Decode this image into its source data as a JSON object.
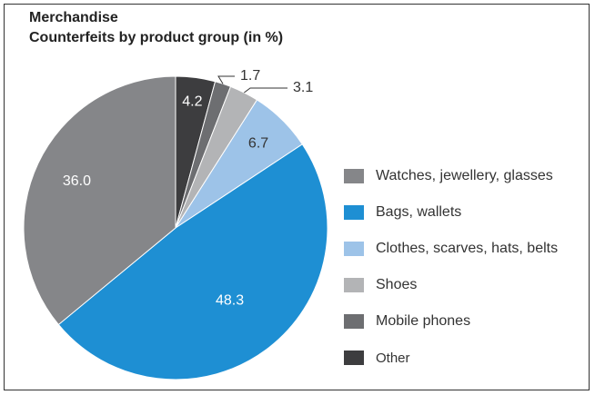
{
  "chart_data": {
    "type": "pie",
    "title": "Merchandise",
    "subtitle": "Counterfeits by product group (in %)",
    "slices": [
      {
        "label": "Other",
        "value": 4.2,
        "color": "#3d3d3f"
      },
      {
        "label": "Mobile phones",
        "value": 1.7,
        "color": "#6d6e71"
      },
      {
        "label": "Shoes",
        "value": 3.1,
        "color": "#b3b4b6"
      },
      {
        "label": "Clothes, scarves, hats, belts",
        "value": 6.7,
        "color": "#9dc3e8"
      },
      {
        "label": "Bags, wallets",
        "value": 48.3,
        "color": "#1e8fd3"
      },
      {
        "label": "Watches, jewellery, glasses",
        "value": 36.0,
        "color": "#858689"
      }
    ],
    "legend": [
      {
        "label": "Watches, jewellery, glasses",
        "color": "#858689"
      },
      {
        "label": "Bags, wallets",
        "color": "#1e8fd3"
      },
      {
        "label": "Clothes, scarves, hats, belts",
        "color": "#9dc3e8"
      },
      {
        "label": "Shoes",
        "color": "#b3b4b6"
      },
      {
        "label": "Mobile phones",
        "color": "#6d6e71"
      },
      {
        "label": "Other",
        "color": "#3d3d3f"
      }
    ],
    "legend_position": "right"
  }
}
